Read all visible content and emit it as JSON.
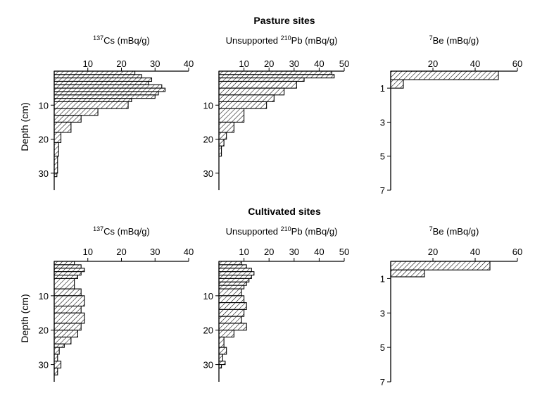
{
  "sections": [
    {
      "title": "Pasture sites"
    },
    {
      "title": "Cultivated sites"
    }
  ],
  "ylabel": "Depth (cm)",
  "chart_data": [
    {
      "type": "bar",
      "orientation": "horizontal-step",
      "section": 0,
      "title_main": "Cs (mBq/g)",
      "title_sup": "137",
      "title_suffix": "",
      "xlim": [
        0,
        40
      ],
      "xticks": [
        10,
        20,
        30,
        40
      ],
      "ylim": [
        0,
        35
      ],
      "yticks": [
        10,
        20,
        30
      ],
      "ylabel": "Depth (cm)",
      "bars": [
        {
          "top": 0,
          "bottom": 1,
          "value": 24
        },
        {
          "top": 1,
          "bottom": 2,
          "value": 26
        },
        {
          "top": 2,
          "bottom": 3,
          "value": 29
        },
        {
          "top": 3,
          "bottom": 4,
          "value": 28
        },
        {
          "top": 4,
          "bottom": 5,
          "value": 32
        },
        {
          "top": 5,
          "bottom": 6,
          "value": 33
        },
        {
          "top": 6,
          "bottom": 7,
          "value": 31
        },
        {
          "top": 7,
          "bottom": 8,
          "value": 30
        },
        {
          "top": 8,
          "bottom": 9,
          "value": 23
        },
        {
          "top": 9,
          "bottom": 11,
          "value": 22
        },
        {
          "top": 11,
          "bottom": 13,
          "value": 13
        },
        {
          "top": 13,
          "bottom": 15,
          "value": 8
        },
        {
          "top": 15,
          "bottom": 18,
          "value": 5
        },
        {
          "top": 18,
          "bottom": 21,
          "value": 2
        },
        {
          "top": 21,
          "bottom": 25,
          "value": 1.3
        },
        {
          "top": 25,
          "bottom": 30,
          "value": 1
        },
        {
          "top": 30,
          "bottom": 31,
          "value": 0.8
        }
      ]
    },
    {
      "type": "bar",
      "orientation": "horizontal-step",
      "section": 0,
      "title_main": "Unsupported ",
      "title_sup": "210",
      "title_suffix": "Pb (mBq/g)",
      "xlim": [
        0,
        50
      ],
      "xticks": [
        10,
        20,
        30,
        40,
        50
      ],
      "ylim": [
        0,
        35
      ],
      "yticks": [
        10,
        20,
        30
      ],
      "bars": [
        {
          "top": 0,
          "bottom": 1,
          "value": 45
        },
        {
          "top": 1,
          "bottom": 2,
          "value": 46
        },
        {
          "top": 2,
          "bottom": 3,
          "value": 34
        },
        {
          "top": 3,
          "bottom": 5,
          "value": 31
        },
        {
          "top": 5,
          "bottom": 7,
          "value": 26
        },
        {
          "top": 7,
          "bottom": 9,
          "value": 22
        },
        {
          "top": 9,
          "bottom": 11,
          "value": 19
        },
        {
          "top": 11,
          "bottom": 15,
          "value": 10
        },
        {
          "top": 15,
          "bottom": 18,
          "value": 6
        },
        {
          "top": 18,
          "bottom": 20,
          "value": 3
        },
        {
          "top": 20,
          "bottom": 22,
          "value": 2
        },
        {
          "top": 22,
          "bottom": 25,
          "value": 1
        }
      ]
    },
    {
      "type": "bar",
      "orientation": "horizontal-step",
      "section": 0,
      "title_main": "Be (mBq/g)",
      "title_sup": "7",
      "title_suffix": "",
      "xlim": [
        0,
        60
      ],
      "xticks": [
        20,
        40,
        60
      ],
      "ylim": [
        0,
        7
      ],
      "yticks": [
        1,
        3,
        5,
        7
      ],
      "bars": [
        {
          "top": 0,
          "bottom": 0.5,
          "value": 51
        },
        {
          "top": 0.5,
          "bottom": 1,
          "value": 6
        }
      ]
    },
    {
      "type": "bar",
      "orientation": "horizontal-step",
      "section": 1,
      "title_main": "Cs (mBq/g)",
      "title_sup": "137",
      "title_suffix": "",
      "xlim": [
        0,
        40
      ],
      "xticks": [
        10,
        20,
        30,
        40
      ],
      "ylim": [
        0,
        35
      ],
      "yticks": [
        10,
        20,
        30
      ],
      "ylabel": "Depth (cm)",
      "bars": [
        {
          "top": 0,
          "bottom": 1,
          "value": 6
        },
        {
          "top": 1,
          "bottom": 2,
          "value": 8
        },
        {
          "top": 2,
          "bottom": 3,
          "value": 9
        },
        {
          "top": 3,
          "bottom": 4,
          "value": 8
        },
        {
          "top": 4,
          "bottom": 5,
          "value": 7
        },
        {
          "top": 5,
          "bottom": 8,
          "value": 6
        },
        {
          "top": 8,
          "bottom": 10,
          "value": 8
        },
        {
          "top": 10,
          "bottom": 13,
          "value": 9
        },
        {
          "top": 13,
          "bottom": 15,
          "value": 8
        },
        {
          "top": 15,
          "bottom": 18,
          "value": 9
        },
        {
          "top": 18,
          "bottom": 20,
          "value": 8
        },
        {
          "top": 20,
          "bottom": 22,
          "value": 7
        },
        {
          "top": 22,
          "bottom": 24,
          "value": 5
        },
        {
          "top": 24,
          "bottom": 25,
          "value": 3
        },
        {
          "top": 25,
          "bottom": 27,
          "value": 1.5
        },
        {
          "top": 27,
          "bottom": 29,
          "value": 1
        },
        {
          "top": 29,
          "bottom": 31,
          "value": 2
        },
        {
          "top": 31,
          "bottom": 33,
          "value": 1
        }
      ]
    },
    {
      "type": "bar",
      "orientation": "horizontal-step",
      "section": 1,
      "title_main": "Unsupported ",
      "title_sup": "210",
      "title_suffix": "Pb (mBq/g)",
      "xlim": [
        0,
        50
      ],
      "xticks": [
        10,
        20,
        30,
        40,
        50
      ],
      "ylim": [
        0,
        35
      ],
      "yticks": [
        10,
        20,
        30
      ],
      "bars": [
        {
          "top": 0,
          "bottom": 1,
          "value": 9
        },
        {
          "top": 1,
          "bottom": 2,
          "value": 11
        },
        {
          "top": 2,
          "bottom": 3,
          "value": 13
        },
        {
          "top": 3,
          "bottom": 4,
          "value": 14
        },
        {
          "top": 4,
          "bottom": 5,
          "value": 13
        },
        {
          "top": 5,
          "bottom": 6,
          "value": 12
        },
        {
          "top": 6,
          "bottom": 7,
          "value": 11
        },
        {
          "top": 7,
          "bottom": 8,
          "value": 10
        },
        {
          "top": 8,
          "bottom": 10,
          "value": 9
        },
        {
          "top": 10,
          "bottom": 12,
          "value": 10
        },
        {
          "top": 12,
          "bottom": 14,
          "value": 11
        },
        {
          "top": 14,
          "bottom": 16,
          "value": 10
        },
        {
          "top": 16,
          "bottom": 18,
          "value": 9
        },
        {
          "top": 18,
          "bottom": 20,
          "value": 11
        },
        {
          "top": 20,
          "bottom": 22,
          "value": 6
        },
        {
          "top": 22,
          "bottom": 25,
          "value": 2
        },
        {
          "top": 25,
          "bottom": 27,
          "value": 3
        },
        {
          "top": 27,
          "bottom": 29,
          "value": 1.5
        },
        {
          "top": 29,
          "bottom": 30,
          "value": 2.5
        },
        {
          "top": 30,
          "bottom": 31,
          "value": 1
        }
      ]
    },
    {
      "type": "bar",
      "orientation": "horizontal-step",
      "section": 1,
      "title_main": "Be (mBq/g)",
      "title_sup": "7",
      "title_suffix": "",
      "xlim": [
        0,
        60
      ],
      "xticks": [
        20,
        40,
        60
      ],
      "ylim": [
        0,
        7
      ],
      "yticks": [
        1,
        3,
        5,
        7
      ],
      "bars": [
        {
          "top": 0,
          "bottom": 0.5,
          "value": 47
        },
        {
          "top": 0.5,
          "bottom": 0.9,
          "value": 16
        }
      ]
    }
  ]
}
